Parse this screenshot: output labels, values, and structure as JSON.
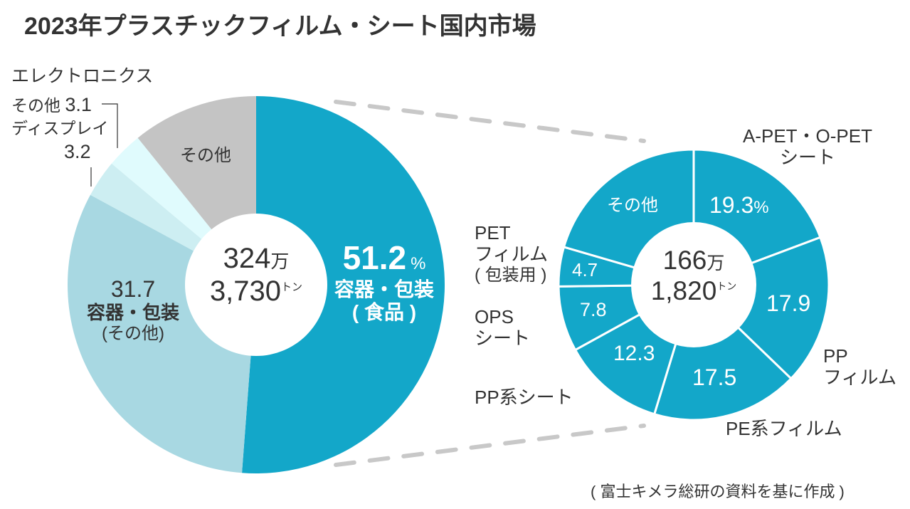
{
  "title": "2023年プラスチックフィルム・シート国内市場",
  "source": "( 富士キメラ総研の資料を基に作成 )",
  "chart_data": [
    {
      "type": "pie",
      "name": "overall",
      "center_label": {
        "line1_num": "324",
        "line1_unit": "万",
        "line2_num": "3,730",
        "line2_unit": "トン"
      },
      "unit": "%",
      "slices": [
        {
          "label": "容器・包装(食品)",
          "label_a": "容器・包装",
          "label_b": "( 食品 )",
          "value": 51.2,
          "value_text": "51.2",
          "color": "#13a7c9"
        },
        {
          "label": "容器・包装(その他)",
          "label_a": "容器・包装",
          "label_b": "(その他)",
          "value": 31.7,
          "value_text": "31.7",
          "color": "#a8d8e2"
        },
        {
          "label": "ディスプレイ",
          "value": 3.2,
          "value_text": "3.2",
          "color": "#cdeef2"
        },
        {
          "label": "その他",
          "group": "エレクトロニクス",
          "value": 3.1,
          "value_text": "3.1",
          "color": "#e0fbfd"
        },
        {
          "label": "その他",
          "value": 10.8,
          "color": "#c4c4c4"
        }
      ]
    },
    {
      "type": "pie",
      "name": "food-packaging-breakdown",
      "center_label": {
        "line1_num": "166",
        "line1_unit": "万",
        "line2_num": "1,820",
        "line2_unit": "トン"
      },
      "color": "#13a7c9",
      "slices": [
        {
          "label_a": "A-PET・O-PET",
          "label_b": "シート",
          "value": 19.3,
          "value_text": "19.3",
          "unit": "%"
        },
        {
          "label_a": "PP",
          "label_b": "フィルム",
          "value": 17.9,
          "value_text": "17.9"
        },
        {
          "label_a": "PE系フィルム",
          "value": 17.5,
          "value_text": "17.5"
        },
        {
          "label_a": "PP系シート",
          "value": 12.3,
          "value_text": "12.3"
        },
        {
          "label_a": "OPS",
          "label_b": "シート",
          "value": 7.8,
          "value_text": "7.8"
        },
        {
          "label_a": "PET",
          "label_b": "フィルム",
          "label_c": "( 包装用 )",
          "value": 4.7,
          "value_text": "4.7"
        },
        {
          "label_a": "その他",
          "value": 20.5
        }
      ]
    }
  ]
}
